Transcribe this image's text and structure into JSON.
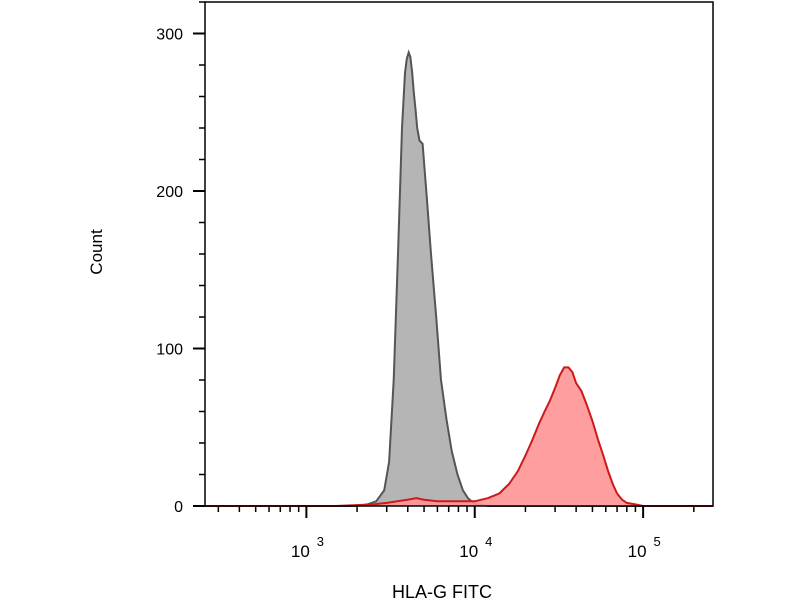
{
  "chart_data": {
    "type": "area",
    "xlabel": "HLA-G FITC",
    "ylabel": "Count",
    "x_scale": "log",
    "xlim": [
      250,
      260000
    ],
    "ylim": [
      0,
      320
    ],
    "grid": false,
    "legend": "none",
    "x_ticks": [
      {
        "value": 1000,
        "base": "10",
        "exp": "3"
      },
      {
        "value": 10000,
        "base": "10",
        "exp": "4"
      },
      {
        "value": 100000,
        "base": "10",
        "exp": "5"
      }
    ],
    "y_ticks": [
      {
        "value": 0,
        "label": "0"
      },
      {
        "value": 100,
        "label": "100"
      },
      {
        "value": 200,
        "label": "200"
      },
      {
        "value": 300,
        "label": "300"
      }
    ],
    "series": [
      {
        "fill": "#b5b5b5",
        "stroke": "#555555",
        "x": [
          250,
          1000,
          2000,
          2300,
          2600,
          2900,
          3100,
          3300,
          3500,
          3700,
          3850,
          3950,
          4050,
          4150,
          4250,
          4350,
          4450,
          4550,
          4700,
          4900,
          5200,
          5500,
          5900,
          6300,
          6800,
          7300,
          7900,
          8500,
          9100,
          9800,
          10500,
          12000,
          30000,
          260000
        ],
        "y": [
          0,
          0,
          0,
          1,
          3,
          10,
          28,
          80,
          160,
          240,
          275,
          284,
          288,
          285,
          275,
          262,
          252,
          240,
          232,
          230,
          195,
          160,
          120,
          80,
          55,
          35,
          20,
          10,
          5,
          2,
          1,
          0,
          0,
          0
        ]
      },
      {
        "fill": "#ff9494",
        "stroke": "#cc1a1a",
        "x": [
          250,
          1500,
          2500,
          3000,
          4000,
          4500,
          5000,
          6000,
          8000,
          10000,
          12000,
          14000,
          16000,
          18000,
          20000,
          22000,
          24000,
          26000,
          28000,
          30000,
          32000,
          34000,
          36000,
          38000,
          40000,
          43000,
          46000,
          50000,
          54000,
          58000,
          62000,
          66000,
          70000,
          75000,
          80000,
          90000,
          100000,
          260000
        ],
        "y": [
          0,
          0,
          1,
          2,
          4,
          5,
          4,
          3,
          3,
          3,
          5,
          8,
          14,
          22,
          32,
          42,
          52,
          60,
          67,
          75,
          83,
          88,
          88,
          85,
          78,
          73,
          65,
          54,
          42,
          32,
          22,
          14,
          8,
          4,
          2,
          1,
          0,
          0
        ]
      }
    ]
  }
}
